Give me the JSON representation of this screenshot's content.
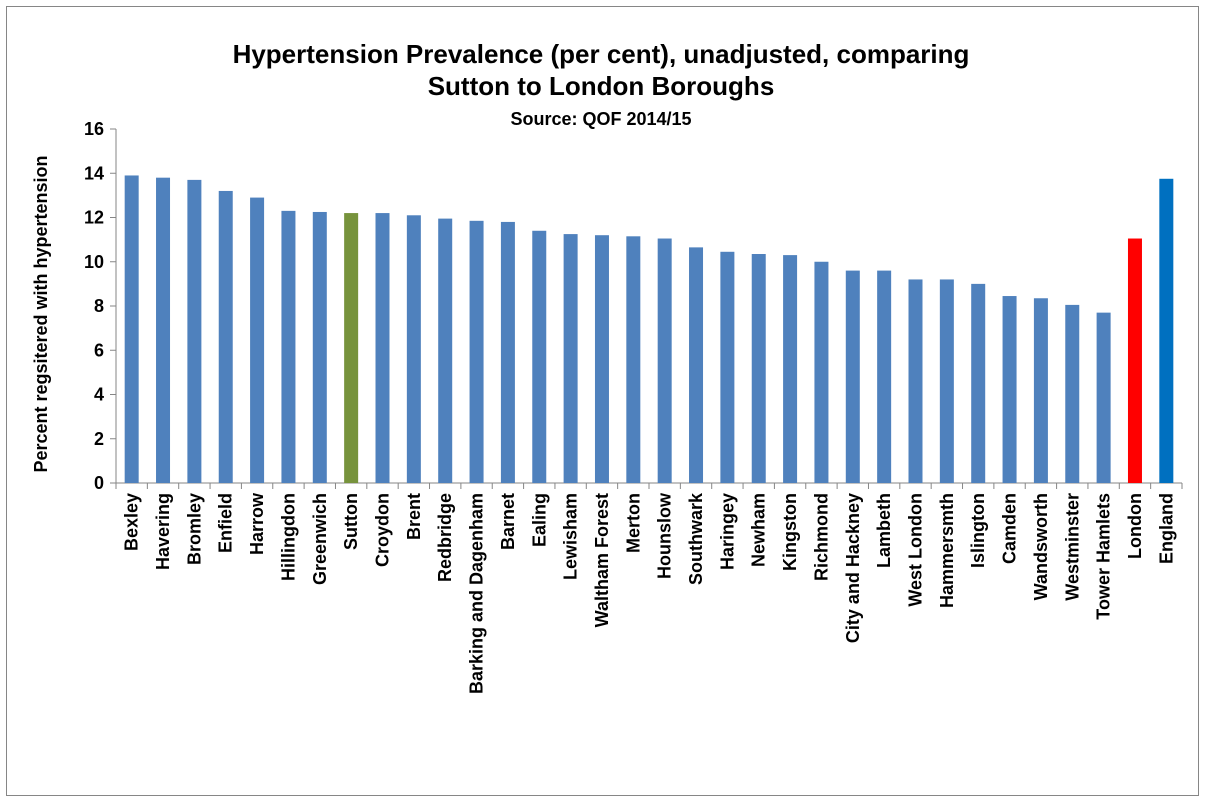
{
  "chart_data": {
    "type": "bar",
    "title_line1": "Hypertension Prevalence (per cent), unadjusted, comparing",
    "title_line2": "Sutton to London Boroughs",
    "subtitle": "Source: QOF 2014/15",
    "xlabel": "",
    "ylabel": "Percent regsitered with hypertension",
    "ylim": [
      0,
      16
    ],
    "yticks": [
      0,
      2,
      4,
      6,
      8,
      10,
      12,
      14,
      16
    ],
    "grid": false,
    "legend": "none",
    "categories": [
      "Bexley",
      "Havering",
      "Bromley",
      "Enfield",
      "Harrow",
      "Hillingdon",
      "Greenwich",
      "Sutton",
      "Croydon",
      "Brent",
      "Redbridge",
      "Barking and Dagenham",
      "Barnet",
      "Ealing",
      "Lewisham",
      "Waltham Forest",
      "Merton",
      "Hounslow",
      "Southwark",
      "Haringey",
      "Newham",
      "Kingston",
      "Richmond",
      "City and Hackney",
      "Lambeth",
      "West London",
      "Hammersmth",
      "Islington",
      "Camden",
      "Wandsworth",
      "Westminster",
      "Tower Hamlets",
      "London",
      "England"
    ],
    "values": [
      13.9,
      13.8,
      13.7,
      13.2,
      12.9,
      12.3,
      12.25,
      12.2,
      12.2,
      12.1,
      11.95,
      11.85,
      11.8,
      11.4,
      11.25,
      11.2,
      11.15,
      11.05,
      10.65,
      10.45,
      10.35,
      10.3,
      10.0,
      9.6,
      9.6,
      9.2,
      9.2,
      9.0,
      8.45,
      8.35,
      8.05,
      7.7,
      11.05,
      13.75
    ],
    "colors": {
      "default": "#4f81bd",
      "Sutton": "#77933c",
      "London": "#ff0000",
      "England": "#0070c0"
    }
  }
}
